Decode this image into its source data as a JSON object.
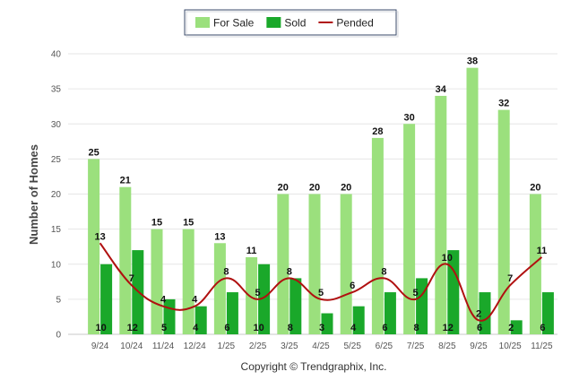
{
  "chart_data": {
    "type": "bar",
    "title": "",
    "xlabel": "",
    "ylabel": "Number of Homes",
    "ylim": [
      0,
      40
    ],
    "yticks": [
      0,
      5,
      10,
      15,
      20,
      25,
      30,
      35,
      40
    ],
    "grid": true,
    "legend_position": "top-center",
    "categories": [
      "9/24",
      "10/24",
      "11/24",
      "12/24",
      "1/25",
      "2/25",
      "3/25",
      "4/25",
      "5/25",
      "6/25",
      "7/25",
      "8/25",
      "9/25",
      "10/25",
      "11/25"
    ],
    "series": [
      {
        "name": "For Sale",
        "kind": "bar",
        "color": "#9be07d",
        "values": [
          25,
          21,
          15,
          15,
          13,
          11,
          20,
          20,
          20,
          28,
          30,
          34,
          38,
          32,
          20
        ]
      },
      {
        "name": "Sold",
        "kind": "bar",
        "color": "#1aa82a",
        "values": [
          10,
          12,
          5,
          4,
          6,
          10,
          8,
          3,
          4,
          6,
          8,
          12,
          6,
          2,
          6
        ]
      },
      {
        "name": "Pended",
        "kind": "line",
        "color": "#b01010",
        "values": [
          13,
          7,
          4,
          4,
          8,
          5,
          8,
          5,
          6,
          8,
          5,
          10,
          2,
          7,
          11
        ]
      }
    ]
  },
  "footer": {
    "copyright": "Copyright © Trendgraphix, Inc."
  }
}
